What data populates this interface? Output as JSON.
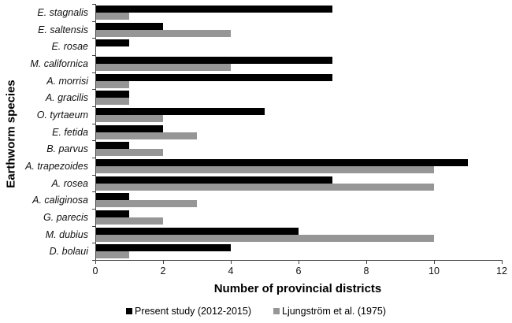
{
  "chart_data": {
    "type": "bar",
    "orientation": "horizontal",
    "title": "",
    "xlabel": "Number of provincial districts",
    "ylabel": "Earthworm species",
    "xlim": [
      0,
      12
    ],
    "xticks": [
      0,
      2,
      4,
      6,
      8,
      10,
      12
    ],
    "grid": false,
    "legend_position": "bottom",
    "categories": [
      "E. stagnalis",
      "E. saltensis",
      "E. rosae",
      "M. californica",
      "A. morrisi",
      "A. gracilis",
      "O. tyrtaeum",
      "E. fetida",
      "B. parvus",
      "A. trapezoides",
      "A. rosea",
      "A. caliginosa",
      "G. parecis",
      "M. dubius",
      "D. bolaui"
    ],
    "series": [
      {
        "name": "Present study (2012-2015)",
        "color": "#000000",
        "values": [
          7,
          2,
          1,
          7,
          7,
          1,
          5,
          2,
          1,
          11,
          7,
          1,
          1,
          6,
          4
        ]
      },
      {
        "name": "Ljungström et al. (1975)",
        "color": "#969696",
        "values": [
          1,
          4,
          0,
          4,
          1,
          1,
          2,
          3,
          2,
          10,
          10,
          3,
          2,
          10,
          1
        ]
      }
    ]
  }
}
